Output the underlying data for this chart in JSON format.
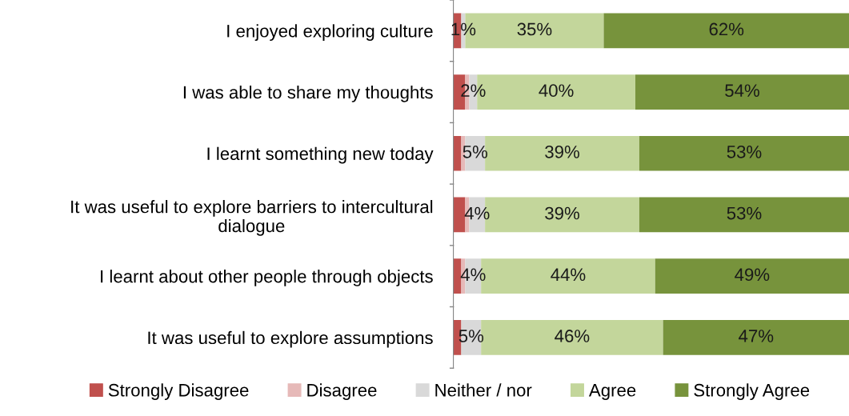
{
  "chart_data": {
    "type": "bar",
    "orientation": "horizontal",
    "stacked": true,
    "categories": [
      "I enjoyed exploring culture",
      "I was able to share my thoughts",
      "I learnt something new today",
      "It was useful to explore barriers to intercultural dialogue",
      "I learnt about other people through objects",
      "It was useful to explore assumptions"
    ],
    "xlim": [
      0,
      100
    ],
    "tick_labels": "y",
    "legend": "bottom",
    "grid": false,
    "series": [
      {
        "name": "Strongly Disagree",
        "color": "#c0504d",
        "values": [
          2,
          3,
          2,
          3,
          2,
          2
        ],
        "value_labels": [
          null,
          null,
          null,
          null,
          null,
          null
        ]
      },
      {
        "name": "Disagree",
        "color": "#e6b9b8",
        "values": [
          0,
          1,
          1,
          1,
          1,
          0
        ],
        "value_labels": [
          null,
          null,
          null,
          null,
          null,
          null
        ]
      },
      {
        "name": "Neither / nor",
        "color": "#d9d9d9",
        "values": [
          1,
          2,
          5,
          4,
          4,
          5
        ],
        "value_labels": [
          "1%",
          "2%",
          "5%",
          "4%",
          "4%",
          "5%"
        ]
      },
      {
        "name": "Agree",
        "color": "#c3d69b",
        "values": [
          35,
          40,
          39,
          39,
          44,
          46
        ],
        "value_labels": [
          "35%",
          "40%",
          "39%",
          "39%",
          "44%",
          "46%"
        ]
      },
      {
        "name": "Strongly Agree",
        "color": "#77933c",
        "values": [
          62,
          54,
          53,
          53,
          49,
          47
        ],
        "value_labels": [
          "62%",
          "54%",
          "53%",
          "53%",
          "49%",
          "47%"
        ]
      }
    ]
  }
}
